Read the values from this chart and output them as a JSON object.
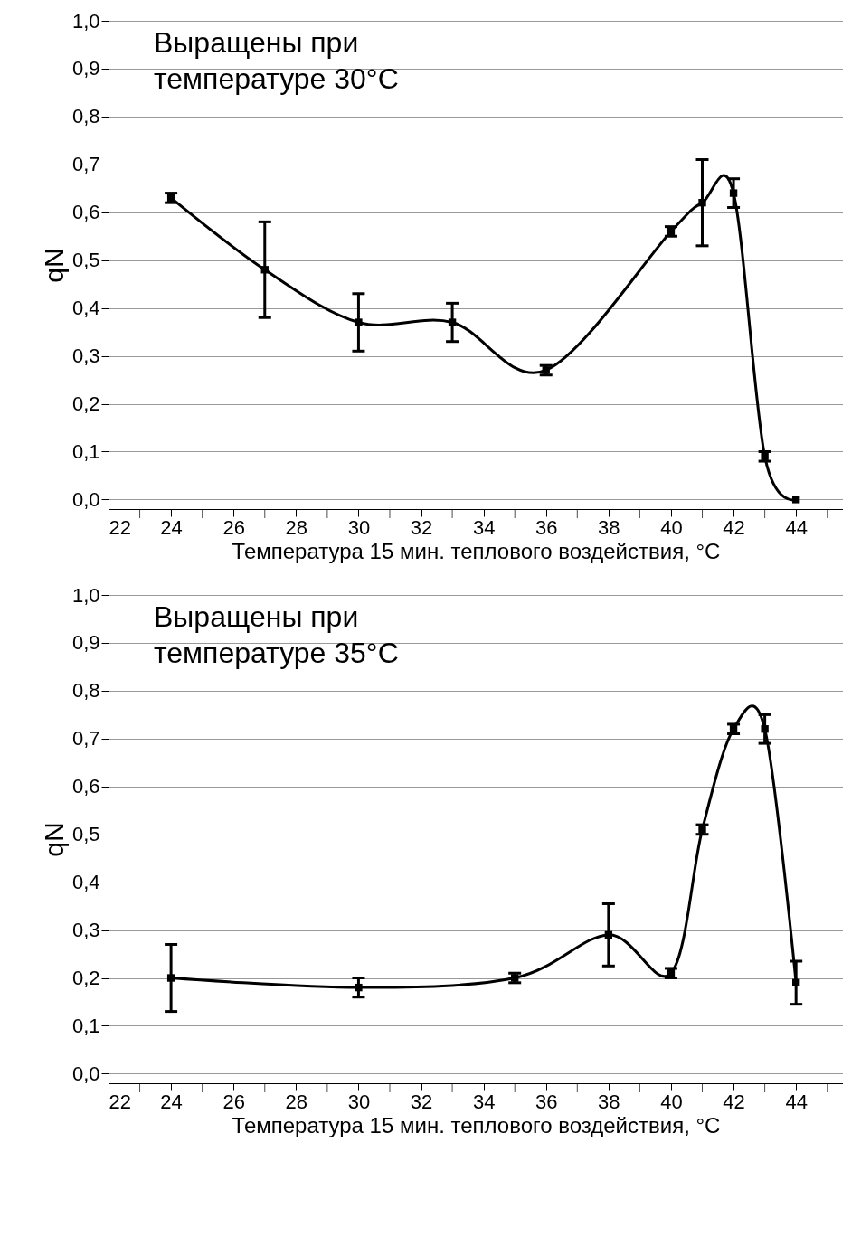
{
  "chart_data": [
    {
      "type": "line",
      "xlabel": "Температура 15 мин. теплового воздействия, °C",
      "ylabel": "qN",
      "annotations": [
        "Выращены при\nтемпературе 30°C"
      ],
      "x": [
        24,
        27,
        30,
        33,
        36,
        40,
        41,
        42,
        43,
        44
      ],
      "series": [
        {
          "color": "#000000",
          "values": [
            0.63,
            0.48,
            0.37,
            0.37,
            0.27,
            0.56,
            0.62,
            0.64,
            0.09,
            0.0
          ],
          "errors": [
            0.01,
            0.1,
            0.06,
            0.04,
            0.01,
            0.01,
            0.09,
            0.03,
            0.01,
            null
          ]
        }
      ],
      "xlim": [
        22,
        45.5
      ],
      "xticks": [
        22,
        {
          "value": 23,
          "label": null
        },
        24,
        {
          "value": 25,
          "label": null
        },
        26,
        {
          "value": 27,
          "label": null
        },
        28,
        {
          "value": 29,
          "label": null
        },
        30,
        {
          "value": 31,
          "label": null
        },
        32,
        {
          "value": 33,
          "label": null
        },
        34,
        {
          "value": 35,
          "label": null
        },
        36,
        {
          "value": 37,
          "label": null
        },
        38,
        {
          "value": 39,
          "label": null
        },
        40,
        {
          "value": 41,
          "label": null
        },
        42,
        {
          "value": 43,
          "label": null
        },
        44,
        {
          "value": 45,
          "label": null
        }
      ],
      "ylim": [
        -0.02,
        1.0
      ],
      "yticks": [
        {
          "value": 0,
          "label": "0,0"
        },
        {
          "value": 0.1,
          "label": "0,1"
        },
        {
          "value": 0.2,
          "label": "0,2"
        },
        {
          "value": 0.3,
          "label": "0,3"
        },
        {
          "value": 0.4,
          "label": "0,4"
        },
        {
          "value": 0.5,
          "label": "0,5"
        },
        {
          "value": 0.6,
          "label": "0,6"
        },
        {
          "value": 0.7,
          "label": "0,7"
        },
        {
          "value": 0.8,
          "label": "0,8"
        },
        {
          "value": 0.9,
          "label": "0,9"
        },
        {
          "value": 1.0,
          "label": "1,0"
        }
      ],
      "grid": "y",
      "marker": "square",
      "line_style": "solid",
      "legend": false
    },
    {
      "type": "line",
      "xlabel": "Температура 15 мин. теплового воздействия, °C",
      "ylabel": "qN",
      "annotations": [
        "Выращены при\nтемпературе 35°C"
      ],
      "x": [
        24,
        30,
        35,
        38,
        40,
        41,
        42,
        43,
        44
      ],
      "series": [
        {
          "color": "#000000",
          "values": [
            0.2,
            0.18,
            0.2,
            0.29,
            0.21,
            0.51,
            0.72,
            0.72,
            0.19
          ],
          "errors": [
            0.07,
            0.02,
            0.01,
            [
              0.225,
              0.355
            ],
            0.01,
            0.01,
            0.01,
            0.03,
            [
              0.145,
              0.235
            ]
          ]
        }
      ],
      "xlim": [
        22,
        45.5
      ],
      "xticks": [
        22,
        {
          "value": 23,
          "label": null
        },
        24,
        {
          "value": 25,
          "label": null
        },
        26,
        {
          "value": 27,
          "label": null
        },
        28,
        {
          "value": 29,
          "label": null
        },
        30,
        {
          "value": 31,
          "label": null
        },
        32,
        {
          "value": 33,
          "label": null
        },
        34,
        {
          "value": 35,
          "label": null
        },
        36,
        {
          "value": 37,
          "label": null
        },
        38,
        {
          "value": 39,
          "label": null
        },
        40,
        {
          "value": 41,
          "label": null
        },
        42,
        {
          "value": 43,
          "label": null
        },
        44,
        {
          "value": 45,
          "label": null
        }
      ],
      "ylim": [
        -0.02,
        1.0
      ],
      "yticks": [
        {
          "value": 0,
          "label": "0,0"
        },
        {
          "value": 0.1,
          "label": "0,1"
        },
        {
          "value": 0.2,
          "label": "0,2"
        },
        {
          "value": 0.3,
          "label": "0,3"
        },
        {
          "value": 0.4,
          "label": "0,4"
        },
        {
          "value": 0.5,
          "label": "0,5"
        },
        {
          "value": 0.6,
          "label": "0,6"
        },
        {
          "value": 0.7,
          "label": "0,7"
        },
        {
          "value": 0.8,
          "label": "0,8"
        },
        {
          "value": 0.9,
          "label": "0,9"
        },
        {
          "value": 1.0,
          "label": "1,0"
        }
      ],
      "grid": "y",
      "marker": "square",
      "line_style": "solid",
      "legend": false
    }
  ]
}
